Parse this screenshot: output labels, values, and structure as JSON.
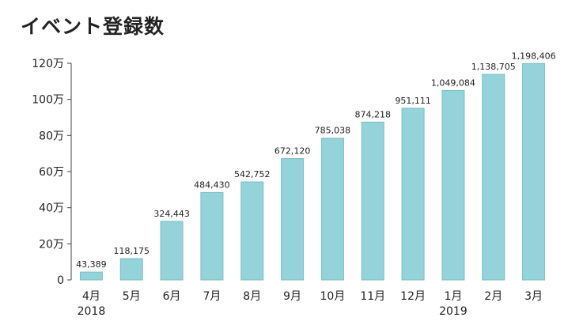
{
  "chart_data": {
    "type": "bar",
    "title": "イベント登録数",
    "categories": [
      "4月",
      "5月",
      "6月",
      "7月",
      "8月",
      "9月",
      "10月",
      "11月",
      "12月",
      "1月",
      "2月",
      "3月"
    ],
    "year_labels": {
      "0": "2018",
      "9": "2019"
    },
    "values": [
      43389,
      118175,
      324443,
      484430,
      542752,
      672120,
      785038,
      874218,
      951111,
      1049084,
      1138705,
      1198406
    ],
    "value_labels": [
      "43,389",
      "118,175",
      "324,443",
      "484,430",
      "542,752",
      "672,120",
      "785,038",
      "874,218",
      "951,111",
      "1,049,084",
      "1,138,705",
      "1,198,406"
    ],
    "yticks": [
      0,
      200000,
      400000,
      600000,
      800000,
      1000000,
      1200000
    ],
    "ytick_labels": [
      "0",
      "20万",
      "40万",
      "60万",
      "80万",
      "100万",
      "120万"
    ],
    "ylim": [
      0,
      1200000
    ],
    "xlabel": "",
    "ylabel": "",
    "grid": false,
    "bar_color": "#94d3d9",
    "bar_edge_color": "#7cbcc3"
  }
}
